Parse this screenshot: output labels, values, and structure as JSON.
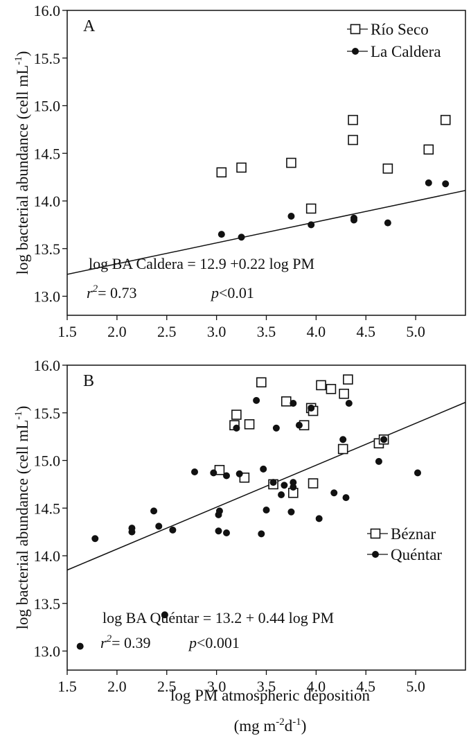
{
  "chart_data": [
    {
      "type": "scatter",
      "panel_label": "A",
      "ylabel": "log bacterial abundance (cell mL",
      "ylabel_sup": "-1",
      "ylabel_close": ")",
      "xlim": [
        1.5,
        5.5
      ],
      "ylim": [
        12.8,
        16.0
      ],
      "x_ticks": [
        "1.5",
        "2.0",
        "2.5",
        "3.0",
        "3.5",
        "4.0",
        "4.5",
        "5.0"
      ],
      "y_ticks": [
        "13.0",
        "13.5",
        "14.0",
        "14.5",
        "15.0",
        "15.5",
        "16.0"
      ],
      "legend_position": "top-right",
      "series": [
        {
          "name": "Río Seco",
          "marker": "open-square",
          "points": [
            [
              3.05,
              14.3
            ],
            [
              3.25,
              14.35
            ],
            [
              3.75,
              14.4
            ],
            [
              3.95,
              13.92
            ],
            [
              4.37,
              14.85
            ],
            [
              4.37,
              14.64
            ],
            [
              4.72,
              14.34
            ],
            [
              5.13,
              14.54
            ],
            [
              5.3,
              14.85
            ]
          ]
        },
        {
          "name": "La Caldera",
          "marker": "filled-circle",
          "points": [
            [
              3.05,
              13.65
            ],
            [
              3.25,
              13.62
            ],
            [
              3.75,
              13.84
            ],
            [
              3.95,
              13.75
            ],
            [
              4.38,
              13.82
            ],
            [
              4.38,
              13.8
            ],
            [
              4.72,
              13.77
            ],
            [
              5.13,
              14.19
            ],
            [
              5.3,
              14.18
            ]
          ]
        }
      ],
      "fit": {
        "x0": 1.5,
        "y0": 13.23,
        "x1": 5.5,
        "y1": 14.11
      },
      "annotations": {
        "equation": "log BA Caldera = 12.9 +0.22 log PM",
        "r2_label": "r",
        "r2_sup": "2",
        "r2_value": "= 0.73",
        "p_label": "p",
        "p_value": "<0.01"
      }
    },
    {
      "type": "scatter",
      "panel_label": "B",
      "ylabel": "log bacterial abundance (cell mL",
      "ylabel_sup": "-1",
      "ylabel_close": ")",
      "xlabel": "log PM atmospheric deposition",
      "xlabel_units_pre": "(mg m",
      "xlabel_units_sup1": "-2",
      "xlabel_units_mid": "d",
      "xlabel_units_sup2": "-1",
      "xlabel_units_close": ")",
      "xlim": [
        1.5,
        5.5
      ],
      "ylim": [
        12.8,
        16.0
      ],
      "x_ticks": [
        "1.5",
        "2.0",
        "2.5",
        "3.0",
        "3.5",
        "4.0",
        "4.5",
        "5.0"
      ],
      "y_ticks": [
        "13.0",
        "13.5",
        "14.0",
        "14.5",
        "15.0",
        "15.5",
        "16.0"
      ],
      "legend_position": "right",
      "series": [
        {
          "name": "Béznar",
          "marker": "open-square",
          "points": [
            [
              3.03,
              14.9
            ],
            [
              3.18,
              15.37
            ],
            [
              3.2,
              15.48
            ],
            [
              3.28,
              14.82
            ],
            [
              3.33,
              15.38
            ],
            [
              3.45,
              15.82
            ],
            [
              3.57,
              14.75
            ],
            [
              3.7,
              15.62
            ],
            [
              3.77,
              14.66
            ],
            [
              3.88,
              15.37
            ],
            [
              3.95,
              15.55
            ],
            [
              3.97,
              15.52
            ],
            [
              3.97,
              14.76
            ],
            [
              4.05,
              15.79
            ],
            [
              4.15,
              15.75
            ],
            [
              4.27,
              15.12
            ],
            [
              4.28,
              15.7
            ],
            [
              4.32,
              15.85
            ],
            [
              4.63,
              15.18
            ],
            [
              4.68,
              15.22
            ]
          ]
        },
        {
          "name": "Quéntar",
          "marker": "filled-circle",
          "points": [
            [
              1.63,
              13.05
            ],
            [
              1.78,
              14.18
            ],
            [
              2.15,
              14.25
            ],
            [
              2.15,
              14.29
            ],
            [
              2.37,
              14.47
            ],
            [
              2.42,
              14.31
            ],
            [
              2.48,
              13.38
            ],
            [
              2.56,
              14.27
            ],
            [
              2.78,
              14.88
            ],
            [
              2.97,
              14.87
            ],
            [
              3.02,
              14.26
            ],
            [
              3.02,
              14.43
            ],
            [
              3.03,
              14.47
            ],
            [
              3.1,
              14.84
            ],
            [
              3.1,
              14.24
            ],
            [
              3.23,
              14.86
            ],
            [
              3.2,
              15.34
            ],
            [
              3.4,
              15.63
            ],
            [
              3.45,
              14.23
            ],
            [
              3.47,
              14.91
            ],
            [
              3.5,
              14.48
            ],
            [
              3.57,
              14.77
            ],
            [
              3.6,
              15.34
            ],
            [
              3.65,
              14.64
            ],
            [
              3.68,
              14.74
            ],
            [
              3.75,
              14.46
            ],
            [
              3.77,
              14.77
            ],
            [
              3.77,
              14.72
            ],
            [
              3.77,
              15.6
            ],
            [
              3.83,
              15.37
            ],
            [
              3.95,
              15.55
            ],
            [
              4.03,
              14.39
            ],
            [
              4.18,
              14.66
            ],
            [
              4.27,
              15.22
            ],
            [
              4.3,
              14.61
            ],
            [
              4.33,
              15.6
            ],
            [
              4.63,
              14.99
            ],
            [
              4.68,
              15.22
            ],
            [
              5.02,
              14.87
            ]
          ]
        }
      ],
      "fit": {
        "x0": 1.5,
        "y0": 13.85,
        "x1": 5.5,
        "y1": 15.61
      },
      "annotations": {
        "equation": "log BA Quéntar = 13.2 + 0.44 log PM",
        "r2_label": "r",
        "r2_sup": "2",
        "r2_value": "= 0.39",
        "p_label": "p",
        "p_value": "<0.001"
      }
    }
  ]
}
